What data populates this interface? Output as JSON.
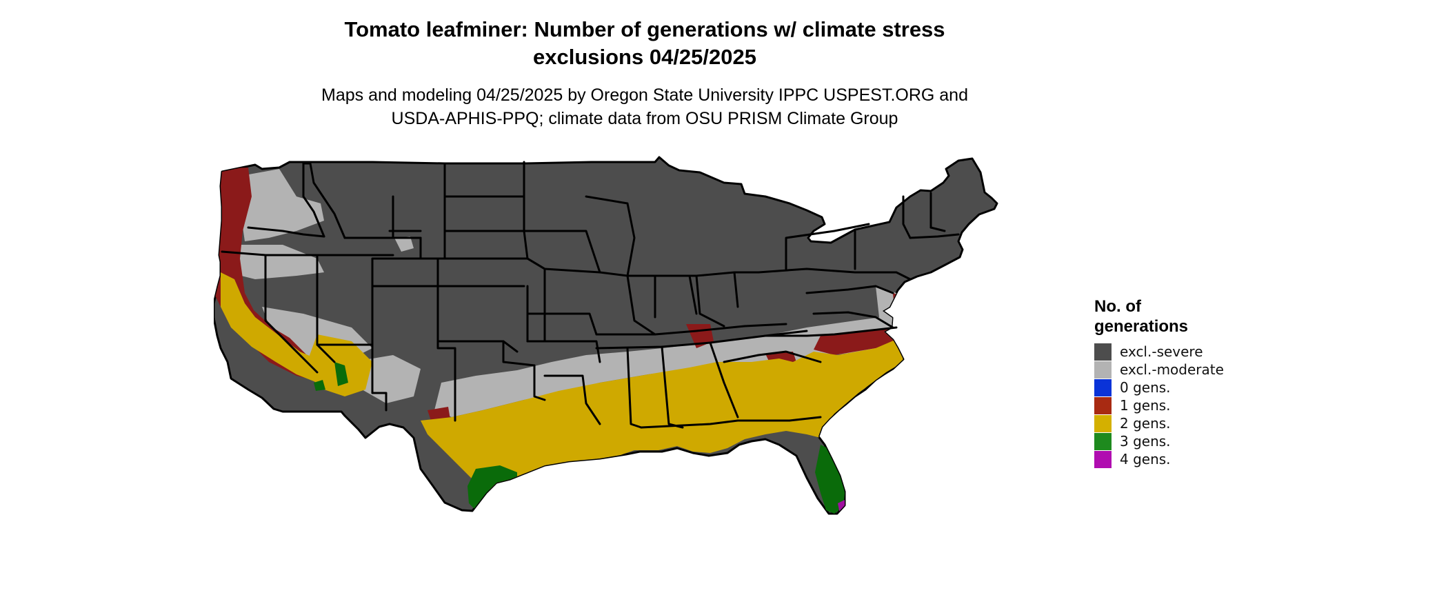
{
  "title_lines": [
    "Tomato leafminer: Number of generations w/ climate stress",
    "exclusions 04/25/2025"
  ],
  "subtitle_lines": [
    "Maps and modeling 04/25/2025 by Oregon State University IPPC USPEST.ORG and",
    "USDA-APHIS-PPQ; climate data from OSU PRISM Climate Group"
  ],
  "legend": {
    "title_lines": [
      "No. of",
      "generations"
    ],
    "items": [
      {
        "label": "excl.-severe",
        "color": "#4d4d4d"
      },
      {
        "label": "excl.-moderate",
        "color": "#b3b3b3"
      },
      {
        "label": "0 gens.",
        "color": "#0a33d8"
      },
      {
        "label": "1 gens.",
        "color": "#a82a12"
      },
      {
        "label": "2 gens.",
        "color": "#d4b000"
      },
      {
        "label": "3 gens.",
        "color": "#1e8a1e"
      },
      {
        "label": "4 gens.",
        "color": "#b00db0"
      }
    ]
  },
  "map_colors": {
    "severe": "#4d4d4d",
    "moderate": "#b3b3b3",
    "one_gen": "#8b1a1a",
    "two_gen": "#cfa900",
    "three_gen": "#0a6b0a",
    "four_gen": "#a00fa0",
    "border": "#000000"
  }
}
